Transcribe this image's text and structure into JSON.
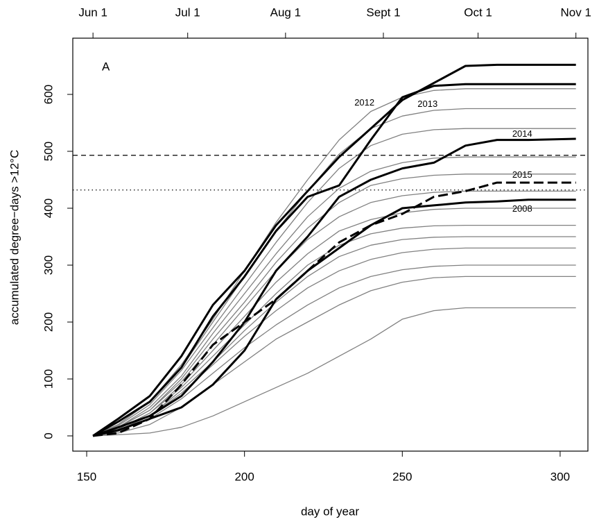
{
  "chart_data": {
    "type": "line",
    "panel_label": "A",
    "xlabel": "day of year",
    "ylabel": "accumulated degree−days >12°C",
    "xlim": [
      145.6,
      308.8
    ],
    "ylim": [
      -26.8,
      698.8
    ],
    "xticks": [
      150,
      200,
      250,
      300
    ],
    "yticks": [
      0,
      100,
      200,
      300,
      400,
      500,
      600
    ],
    "x2ticks": [
      {
        "value": 152,
        "label": "Jun 1"
      },
      {
        "value": 182,
        "label": "Jul 1"
      },
      {
        "value": 213,
        "label": "Aug 1"
      },
      {
        "value": 244,
        "label": "Sept 1"
      },
      {
        "value": 274,
        "label": "Oct 1"
      },
      {
        "value": 305,
        "label": "Nov 1"
      }
    ],
    "hlines": [
      {
        "value": 493,
        "style": "dashed"
      },
      {
        "value": 432,
        "style": "dotted"
      }
    ],
    "x": [
      152,
      160,
      170,
      180,
      190,
      200,
      210,
      220,
      230,
      240,
      250,
      260,
      270,
      280,
      290,
      305
    ],
    "series": [
      {
        "color": "#808080",
        "line_width": 1.3,
        "values": [
          0,
          2,
          5,
          15,
          35,
          60,
          85,
          110,
          140,
          170,
          205,
          220,
          225,
          225,
          225,
          225
        ]
      },
      {
        "color": "#808080",
        "line_width": 1.3,
        "values": [
          0,
          5,
          20,
          50,
          90,
          130,
          170,
          200,
          230,
          255,
          270,
          278,
          280,
          280,
          280,
          280
        ]
      },
      {
        "color": "#808080",
        "line_width": 1.3,
        "values": [
          0,
          8,
          30,
          65,
          110,
          155,
          195,
          230,
          260,
          280,
          292,
          298,
          300,
          300,
          300,
          300
        ]
      },
      {
        "color": "#808080",
        "line_width": 1.3,
        "values": [
          0,
          10,
          35,
          75,
          125,
          175,
          220,
          260,
          290,
          310,
          322,
          328,
          330,
          330,
          330,
          330
        ]
      },
      {
        "color": "#808080",
        "line_width": 1.3,
        "values": [
          0,
          10,
          35,
          80,
          130,
          185,
          235,
          280,
          315,
          335,
          345,
          349,
          350,
          350,
          350,
          350
        ]
      },
      {
        "color": "#808080",
        "line_width": 1.3,
        "values": [
          0,
          12,
          40,
          85,
          140,
          195,
          250,
          300,
          335,
          355,
          365,
          369,
          370,
          370,
          370,
          370
        ]
      },
      {
        "color": "#808080",
        "line_width": 1.3,
        "values": [
          0,
          12,
          40,
          90,
          150,
          210,
          270,
          320,
          360,
          380,
          392,
          398,
          400,
          400,
          400,
          400
        ]
      },
      {
        "color": "#808080",
        "line_width": 1.3,
        "values": [
          0,
          15,
          45,
          95,
          160,
          225,
          290,
          345,
          385,
          410,
          422,
          428,
          430,
          430,
          430,
          430
        ]
      },
      {
        "color": "#808080",
        "line_width": 1.3,
        "values": [
          0,
          15,
          45,
          100,
          170,
          235,
          305,
          365,
          410,
          440,
          452,
          458,
          460,
          460,
          460,
          460
        ]
      },
      {
        "color": "#808080",
        "line_width": 1.3,
        "values": [
          0,
          15,
          50,
          105,
          180,
          250,
          320,
          385,
          435,
          465,
          480,
          488,
          490,
          490,
          490,
          490
        ]
      },
      {
        "color": "#808080",
        "line_width": 1.3,
        "values": [
          0,
          18,
          55,
          115,
          190,
          265,
          340,
          410,
          470,
          510,
          530,
          538,
          540,
          540,
          540,
          540
        ]
      },
      {
        "color": "#808080",
        "line_width": 1.3,
        "values": [
          0,
          20,
          60,
          120,
          200,
          280,
          360,
          430,
          495,
          540,
          562,
          572,
          575,
          575,
          575,
          575
        ]
      },
      {
        "color": "#808080",
        "line_width": 1.3,
        "values": [
          0,
          20,
          60,
          125,
          205,
          290,
          375,
          450,
          520,
          570,
          595,
          607,
          610,
          610,
          610,
          610
        ]
      },
      {
        "name": "2012",
        "color": "#000000",
        "line_width": 3,
        "values": [
          0,
          30,
          70,
          140,
          230,
          290,
          370,
          430,
          490,
          540,
          590,
          620,
          650,
          652,
          652,
          652
        ]
      },
      {
        "name": "2013",
        "color": "#000000",
        "line_width": 3,
        "values": [
          0,
          25,
          60,
          120,
          210,
          280,
          360,
          420,
          440,
          520,
          595,
          615,
          618,
          618,
          618,
          618
        ]
      },
      {
        "name": "2014",
        "color": "#000000",
        "line_width": 3,
        "values": [
          0,
          15,
          35,
          70,
          130,
          200,
          290,
          350,
          420,
          450,
          470,
          480,
          510,
          520,
          520,
          522
        ]
      },
      {
        "name": "2015",
        "color": "#000000",
        "line_width": 3,
        "dash": true,
        "values": [
          0,
          5,
          30,
          90,
          160,
          200,
          240,
          290,
          340,
          370,
          390,
          420,
          430,
          445,
          445,
          445
        ]
      },
      {
        "name": "2008",
        "color": "#000000",
        "line_width": 3,
        "values": [
          0,
          10,
          30,
          50,
          90,
          150,
          240,
          290,
          330,
          370,
          400,
          405,
          410,
          412,
          415,
          415
        ]
      }
    ]
  }
}
